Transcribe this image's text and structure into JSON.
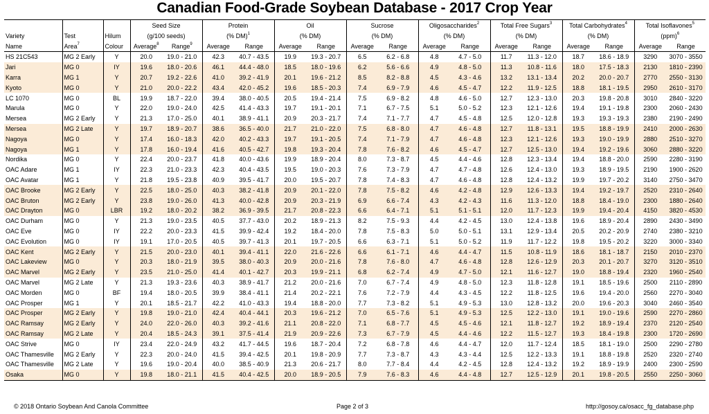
{
  "title": "Canadian Food-Grade Soybean Database - 2017 Crop Year",
  "header": {
    "row1": [
      "",
      "",
      "",
      "Seed Size",
      "",
      "Protein",
      "",
      "Oil",
      "",
      "Sucrose",
      "",
      "Oligosaccharides",
      "",
      "Total Free Sugars",
      "",
      "Total Carbohydrates",
      "",
      "Total Isoflavones",
      ""
    ],
    "row1_sup": {
      "11": "2",
      "13": "3",
      "15": "4",
      "17": "5"
    },
    "row2": [
      "Variety",
      "Test",
      "Hilum",
      "(g/100 seeds)",
      "",
      "(% DM)",
      "",
      "(% DM)",
      "",
      "(% DM)",
      "",
      "(% DM)",
      "",
      "(% DM)",
      "",
      "(% DM)",
      "",
      "(ppm)",
      ""
    ],
    "row2_sup": {
      "5": "1",
      "17": "6"
    },
    "row3": [
      "Name",
      "Area",
      "Colour",
      "Average",
      "Range",
      "Average",
      "Range",
      "Average",
      "Range",
      "Average",
      "Range",
      "Average",
      "Range",
      "Average",
      "Range",
      "Average",
      "Range",
      "Average",
      "Range"
    ],
    "row3_sup": {
      "1": "7",
      "3": "8",
      "4": "9"
    }
  },
  "rows": [
    {
      "highlight": false,
      "cells": [
        "HS 21C543",
        "MG 2 Early",
        "Y",
        "20.0",
        "19.0 - 21.0",
        "42.3",
        "40.7 - 43.5",
        "19.9",
        "19.3 - 20.7",
        "6.5",
        "6.2 - 6.8",
        "4.8",
        "4.7 - 5.0",
        "11.7",
        "11.3 - 12.0",
        "18.7",
        "18.6 - 18.9",
        "3290",
        "3070 - 3550"
      ]
    },
    {
      "highlight": true,
      "cells": [
        "Jari",
        "MG 0",
        "IY",
        "19.6",
        "18.0 - 20.6",
        "46.1",
        "44.4 - 48.0",
        "18.5",
        "18.0 - 19.6",
        "6.2",
        "5.6 - 6.6",
        "4.9",
        "4.8 - 5.0",
        "11.3",
        "10.8 - 11.6",
        "18.0",
        "17.5 - 18.3",
        "2130",
        "1810 - 2390"
      ]
    },
    {
      "highlight": true,
      "cells": [
        "Karra",
        "MG 1",
        "Y",
        "20.7",
        "19.2 - 22.6",
        "41.0",
        "39.2 - 41.9",
        "20.1",
        "19.6 - 21.2",
        "8.5",
        "8.2 - 8.8",
        "4.5",
        "4.3 - 4.6",
        "13.2",
        "13.1 - 13.4",
        "20.2",
        "20.0 - 20.7",
        "2770",
        "2550 - 3130"
      ]
    },
    {
      "highlight": true,
      "cells": [
        "Kyoto",
        "MG 0",
        "Y",
        "21.0",
        "20.0 - 22.2",
        "43.4",
        "42.0 - 45.2",
        "19.6",
        "18.5 - 20.3",
        "7.4",
        "6.9 - 7.9",
        "4.6",
        "4.5 - 4.7",
        "12.2",
        "11.9 - 12.5",
        "18.8",
        "18.1 - 19.5",
        "2950",
        "2610 - 3170"
      ]
    },
    {
      "highlight": false,
      "cells": [
        "LC 1070",
        "MG 0",
        "BL",
        "19.9",
        "18.7 - 22.0",
        "39.4",
        "38.0 - 40.5",
        "20.5",
        "19.4 - 21.4",
        "7.5",
        "6.9 - 8.2",
        "4.8",
        "4.6 - 5.0",
        "12.7",
        "12.3 - 13.0",
        "20.3",
        "19.8 - 20.8",
        "3010",
        "2840 - 3220"
      ]
    },
    {
      "highlight": false,
      "cells": [
        "Marula",
        "MG 0",
        "Y",
        "22.0",
        "19.0 - 24.0",
        "42.5",
        "41.4 - 43.3",
        "19.7",
        "19.1 - 20.1",
        "7.1",
        "6.7 - 7.5",
        "5.1",
        "5.0 - 5.2",
        "12.3",
        "12.1 - 12.6",
        "19.4",
        "19.1 - 19.8",
        "2300",
        "2060 - 2430"
      ]
    },
    {
      "highlight": false,
      "cells": [
        "Mersea",
        "MG 2 Early",
        "Y",
        "21.3",
        "17.0 - 25.0",
        "40.1",
        "38.9 - 41.1",
        "20.9",
        "20.3 - 21.7",
        "7.4",
        "7.1 - 7.7",
        "4.7",
        "4.5 - 4.8",
        "12.5",
        "12.0 - 12.8",
        "19.3",
        "19.3 - 19.3",
        "2380",
        "2190 - 2490"
      ]
    },
    {
      "highlight": true,
      "cells": [
        "Mersea",
        "MG 2 Late",
        "Y",
        "19.7",
        "18.9 - 20.7",
        "38.6",
        "36.5 - 40.0",
        "21.7",
        "21.0 - 22.0",
        "7.5",
        "6.8 - 8.0",
        "4.7",
        "4.6 - 4.8",
        "12.7",
        "11.8 - 13.1",
        "19.5",
        "18.8 - 19.9",
        "2410",
        "2000 - 2630"
      ]
    },
    {
      "highlight": true,
      "cells": [
        "Nagoya",
        "MG 0",
        "Y",
        "17.4",
        "16.0 - 18.3",
        "42.0",
        "40.2 - 43.3",
        "19.7",
        "19.1 - 20.5",
        "7.4",
        "7.1 - 7.9",
        "4.7",
        "4.6 - 4.8",
        "12.3",
        "12.1 - 12.6",
        "19.3",
        "19.0 - 19.9",
        "2880",
        "2510 - 3270"
      ]
    },
    {
      "highlight": true,
      "cells": [
        "Nagoya",
        "MG 1",
        "Y",
        "17.8",
        "16.0 - 19.4",
        "41.6",
        "40.5 - 42.7",
        "19.8",
        "19.3 - 20.4",
        "7.8",
        "7.6 - 8.2",
        "4.6",
        "4.5 - 4.7",
        "12.7",
        "12.5 - 13.0",
        "19.4",
        "19.2 - 19.6",
        "3060",
        "2880 - 3220"
      ]
    },
    {
      "highlight": false,
      "cells": [
        "Nordika",
        "MG 0",
        "Y",
        "22.4",
        "20.0 - 23.7",
        "41.8",
        "40.0 - 43.6",
        "19.9",
        "18.9 - 20.4",
        "8.0",
        "7.3 - 8.7",
        "4.5",
        "4.4 - 4.6",
        "12.8",
        "12.3 - 13.4",
        "19.4",
        "18.8 - 20.0",
        "2590",
        "2280 - 3190"
      ]
    },
    {
      "highlight": false,
      "cells": [
        "OAC Adare",
        "MG 1",
        "IY",
        "22.3",
        "21.0 - 23.3",
        "42.3",
        "40.4 - 43.5",
        "19.5",
        "19.0 - 20.3",
        "7.6",
        "7.3 - 7.9",
        "4.7",
        "4.7 - 4.8",
        "12.6",
        "12.4 - 13.0",
        "19.3",
        "18.9 - 19.5",
        "2190",
        "1900 - 2620"
      ]
    },
    {
      "highlight": false,
      "cells": [
        "OAC Avatar",
        "MG 1",
        "Y",
        "21.8",
        "19.5 - 23.8",
        "40.9",
        "39.5 - 41.7",
        "20.0",
        "19.5 - 20.7",
        "7.8",
        "7.4 - 8.3",
        "4.7",
        "4.6 - 4.8",
        "12.8",
        "12.4 - 13.2",
        "19.9",
        "19.7 - 20.2",
        "3140",
        "2750 - 3470"
      ]
    },
    {
      "highlight": true,
      "cells": [
        "OAC Brooke",
        "MG 2 Early",
        "Y",
        "22.5",
        "18.0 - 25.0",
        "40.3",
        "38.2 - 41.8",
        "20.9",
        "20.1 - 22.0",
        "7.8",
        "7.5 - 8.2",
        "4.6",
        "4.2 - 4.8",
        "12.9",
        "12.6 - 13.3",
        "19.4",
        "19.2 - 19.7",
        "2520",
        "2310 - 2640"
      ]
    },
    {
      "highlight": true,
      "cells": [
        "OAC Bruton",
        "MG 2 Early",
        "Y",
        "23.8",
        "19.0 - 26.0",
        "41.3",
        "40.0 - 42.8",
        "20.9",
        "20.3 - 21.9",
        "6.9",
        "6.6 - 7.4",
        "4.3",
        "4.2 - 4.3",
        "11.6",
        "11.3 - 12.0",
        "18.8",
        "18.4 - 19.0",
        "2300",
        "1880 - 2640"
      ]
    },
    {
      "highlight": true,
      "cells": [
        "OAC Drayton",
        "MG 0",
        "LBR",
        "19.2",
        "18.0 - 20.2",
        "38.2",
        "36.9 - 39.5",
        "21.7",
        "20.8 - 22.3",
        "6.6",
        "6.4 - 7.1",
        "5.1",
        "5.1 - 5.1",
        "12.0",
        "11.7 - 12.3",
        "19.9",
        "19.4 - 20.4",
        "4150",
        "3820 - 4530"
      ]
    },
    {
      "highlight": false,
      "cells": [
        "OAC Durham",
        "MG 0",
        "Y",
        "21.3",
        "19.0 - 23.5",
        "40.5",
        "37.7 - 43.0",
        "20.2",
        "18.9 - 21.3",
        "8.2",
        "7.5 - 9.3",
        "4.4",
        "4.2 - 4.5",
        "13.0",
        "12.4 - 13.8",
        "19.6",
        "18.9 - 20.4",
        "2890",
        "2430 - 3490"
      ]
    },
    {
      "highlight": false,
      "cells": [
        "OAC Eve",
        "MG 0",
        "IY",
        "22.2",
        "20.0 - 23.3",
        "41.5",
        "39.9 - 42.4",
        "19.2",
        "18.4 - 20.0",
        "7.8",
        "7.5 - 8.3",
        "5.0",
        "5.0 - 5.1",
        "13.1",
        "12.9 - 13.4",
        "20.5",
        "20.2 - 20.9",
        "2740",
        "2380 - 3210"
      ]
    },
    {
      "highlight": false,
      "cells": [
        "OAC Evolution",
        "MG 0",
        "IY",
        "19.1",
        "17.0 - 20.5",
        "40.5",
        "39.7 - 41.3",
        "20.1",
        "19.7 - 20.5",
        "6.6",
        "6.3 - 7.1",
        "5.1",
        "5.0 - 5.2",
        "11.9",
        "11.7 - 12.2",
        "19.8",
        "19.5 - 20.2",
        "3220",
        "3000 - 3340"
      ]
    },
    {
      "highlight": true,
      "cells": [
        "OAC Kent",
        "MG 2 Early",
        "Y",
        "21.5",
        "20.0 - 23.0",
        "40.1",
        "39.4 - 41.1",
        "22.0",
        "21.6 - 22.6",
        "6.6",
        "6.1 - 7.1",
        "4.6",
        "4.4 - 4.7",
        "11.5",
        "10.8 - 11.9",
        "18.6",
        "18.1 - 18.7",
        "2150",
        "2010 - 2370"
      ]
    },
    {
      "highlight": true,
      "cells": [
        "OAC Lakeview",
        "MG 0",
        "Y",
        "20.3",
        "18.0 - 21.9",
        "39.5",
        "38.0 - 40.3",
        "20.9",
        "20.0 - 21.6",
        "7.8",
        "7.6 - 8.0",
        "4.7",
        "4.6 - 4.8",
        "12.8",
        "12.6 - 12.9",
        "20.3",
        "20.1 - 20.7",
        "3270",
        "3120 - 3510"
      ]
    },
    {
      "highlight": true,
      "cells": [
        "OAC Marvel",
        "MG 2 Early",
        "Y",
        "23.5",
        "21.0 - 25.0",
        "41.4",
        "40.1 - 42.7",
        "20.3",
        "19.9 - 21.1",
        "6.8",
        "6.2 - 7.4",
        "4.9",
        "4.7 - 5.0",
        "12.1",
        "11.6 - 12.7",
        "19.0",
        "18.8 - 19.4",
        "2320",
        "1960 - 2540"
      ]
    },
    {
      "highlight": false,
      "cells": [
        "OAC Marvel",
        "MG 2 Late",
        "Y",
        "21.3",
        "19.3 - 23.6",
        "40.3",
        "38.9 - 41.7",
        "21.2",
        "20.0 - 21.6",
        "7.0",
        "6.7 - 7.4",
        "4.9",
        "4.8 - 5.0",
        "12.3",
        "11.8 - 12.8",
        "19.1",
        "18.5 - 19.6",
        "2500",
        "2110 - 2890"
      ]
    },
    {
      "highlight": false,
      "cells": [
        "OAC Morden",
        "MG 0",
        "BF",
        "19.4",
        "18.0 - 20.5",
        "39.9",
        "38.4 - 41.1",
        "21.4",
        "20.2 - 22.1",
        "7.6",
        "7.2 - 7.9",
        "4.4",
        "4.3 - 4.5",
        "12.2",
        "11.8 - 12.5",
        "19.6",
        "19.4 - 20.0",
        "2560",
        "2270 - 3040"
      ]
    },
    {
      "highlight": false,
      "cells": [
        "OAC Prosper",
        "MG 1",
        "Y",
        "20.1",
        "18.5 - 21.7",
        "42.2",
        "41.0 - 43.3",
        "19.4",
        "18.8 - 20.0",
        "7.7",
        "7.3 - 8.2",
        "5.1",
        "4.9 - 5.3",
        "13.0",
        "12.8 - 13.2",
        "20.0",
        "19.6 - 20.3",
        "3040",
        "2460 - 3540"
      ]
    },
    {
      "highlight": true,
      "cells": [
        "OAC Prosper",
        "MG 2 Early",
        "Y",
        "19.8",
        "19.0 - 21.0",
        "42.4",
        "40.4 - 44.1",
        "20.3",
        "19.6 - 21.2",
        "7.0",
        "6.5 - 7.6",
        "5.1",
        "4.9 - 5.3",
        "12.5",
        "12.2 - 13.0",
        "19.1",
        "19.0 - 19.6",
        "2590",
        "2270 - 2860"
      ]
    },
    {
      "highlight": true,
      "cells": [
        "OAC Ramsay",
        "MG 2 Early",
        "Y",
        "24.0",
        "22.0 - 26.0",
        "40.3",
        "39.2 - 41.6",
        "21.1",
        "20.8 - 22.0",
        "7.1",
        "6.8 - 7.7",
        "4.5",
        "4.5 - 4.6",
        "12.1",
        "11.8 - 12.7",
        "19.2",
        "18.9 - 19.4",
        "2370",
        "2120 - 2540"
      ]
    },
    {
      "highlight": true,
      "cells": [
        "OAC Ramsay",
        "MG 2 Late",
        "Y",
        "20.4",
        "18.5 - 24.3",
        "39.1",
        "37.5 - 41.4",
        "21.9",
        "20.9 - 22.6",
        "7.3",
        "6.7 - 7.9",
        "4.5",
        "4.4 - 4.6",
        "12.2",
        "11.5 - 12.7",
        "19.3",
        "18.4 - 19.8",
        "2300",
        "1720 - 2690"
      ]
    },
    {
      "highlight": false,
      "cells": [
        "OAC Strive",
        "MG 0",
        "IY",
        "23.4",
        "22.0 - 24.9",
        "43.2",
        "41.7 - 44.5",
        "19.6",
        "18.7 - 20.4",
        "7.2",
        "6.8 - 7.8",
        "4.6",
        "4.4 - 4.7",
        "12.0",
        "11.7 - 12.4",
        "18.5",
        "18.1 - 19.0",
        "2500",
        "2290 - 2780"
      ]
    },
    {
      "highlight": false,
      "cells": [
        "OAC Thamesville",
        "MG 2 Early",
        "Y",
        "22.3",
        "20.0 - 24.0",
        "41.5",
        "39.4 - 42.5",
        "20.1",
        "19.8 - 20.9",
        "7.7",
        "7.3 - 8.7",
        "4.3",
        "4.3 - 4.4",
        "12.5",
        "12.2 - 13.3",
        "19.1",
        "18.8 - 19.8",
        "2520",
        "2320 - 2740"
      ]
    },
    {
      "highlight": false,
      "cells": [
        "OAC Thamesville",
        "MG 2 Late",
        "Y",
        "19.6",
        "19.0 - 20.4",
        "40.0",
        "38.5 - 40.9",
        "21.3",
        "20.6 - 21.7",
        "8.0",
        "7.7 - 8.4",
        "4.4",
        "4.2 - 4.5",
        "12.8",
        "12.4 - 13.2",
        "19.2",
        "18.9 - 19.9",
        "2400",
        "2300 - 2590"
      ]
    },
    {
      "highlight": true,
      "cells": [
        "Osaka",
        "MG 0",
        "Y",
        "19.8",
        "18.0 - 21.1",
        "41.5",
        "40.4 - 42.5",
        "20.0",
        "18.9 - 20.5",
        "7.9",
        "7.6 - 8.3",
        "4.6",
        "4.4 - 4.8",
        "12.7",
        "12.5 - 12.9",
        "20.1",
        "19.8 - 20.5",
        "2550",
        "2250 - 3060"
      ]
    }
  ],
  "footer": {
    "left": "© 2018 Ontario Soybean And Canola Committee",
    "center": "Page 2 of 3",
    "right": "http://gosoy.ca/osacc_fg_database.php"
  }
}
